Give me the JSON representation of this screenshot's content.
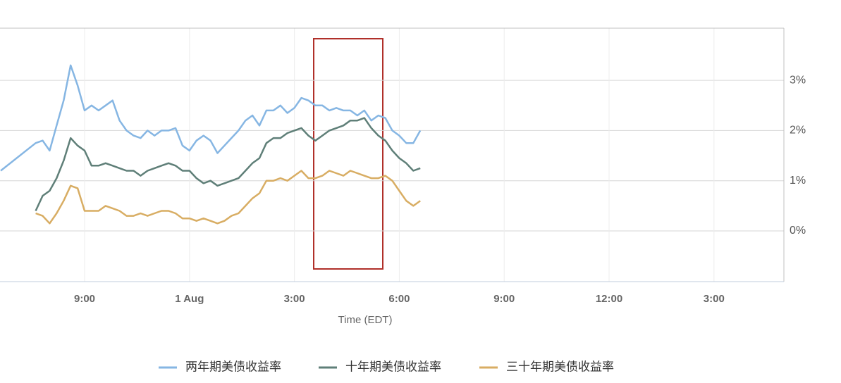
{
  "chart_data": {
    "type": "line",
    "xlabel": "Time (EDT)",
    "x": [
      -5.4,
      -4.4,
      -4.2,
      -4.0,
      -3.8,
      -3.6,
      -3.4,
      -3.2,
      -3.0,
      -2.8,
      -2.6,
      -2.4,
      -2.2,
      -2.0,
      -1.8,
      -1.6,
      -1.4,
      -1.2,
      -1.0,
      -0.8,
      -0.6,
      -0.4,
      -0.2,
      0.0,
      0.2,
      0.4,
      0.6,
      0.8,
      1.0,
      1.2,
      1.4,
      1.6,
      1.8,
      2.0,
      2.2,
      2.4,
      2.6,
      2.8,
      3.0,
      3.2,
      3.4,
      3.6,
      3.8,
      4.0,
      4.2,
      4.4,
      4.6,
      4.8,
      5.0,
      5.2,
      5.4,
      5.6,
      5.8,
      6.0,
      6.2,
      6.4,
      6.6
    ],
    "series": [
      {
        "name": "两年期美债收益率",
        "color": "#86b6e3",
        "values": [
          1.2,
          1.75,
          1.8,
          1.6,
          2.1,
          2.6,
          3.3,
          2.9,
          2.4,
          2.5,
          2.4,
          2.5,
          2.6,
          2.2,
          2.0,
          1.9,
          1.85,
          2.0,
          1.9,
          2.0,
          2.0,
          2.05,
          1.7,
          1.6,
          1.8,
          1.9,
          1.8,
          1.55,
          1.7,
          1.85,
          2.0,
          2.2,
          2.3,
          2.1,
          2.4,
          2.4,
          2.5,
          2.35,
          2.45,
          2.65,
          2.6,
          2.5,
          2.5,
          2.4,
          2.45,
          2.4,
          2.4,
          2.3,
          2.4,
          2.2,
          2.3,
          2.25,
          2.0,
          1.9,
          1.75,
          1.75,
          2.0
        ]
      },
      {
        "name": "十年期美债收益率",
        "color": "#5f7f78",
        "values": [
          null,
          0.4,
          0.7,
          0.8,
          1.05,
          1.4,
          1.85,
          1.7,
          1.6,
          1.3,
          1.3,
          1.35,
          1.3,
          1.25,
          1.2,
          1.2,
          1.1,
          1.2,
          1.25,
          1.3,
          1.35,
          1.3,
          1.2,
          1.2,
          1.05,
          0.95,
          1.0,
          0.9,
          0.95,
          1.0,
          1.05,
          1.2,
          1.35,
          1.45,
          1.75,
          1.85,
          1.85,
          1.95,
          2.0,
          2.05,
          1.9,
          1.8,
          1.9,
          2.0,
          2.05,
          2.1,
          2.2,
          2.2,
          2.25,
          2.05,
          1.9,
          1.8,
          1.6,
          1.45,
          1.35,
          1.2,
          1.25
        ]
      },
      {
        "name": "三十年期美债收益率",
        "color": "#d8ad63",
        "values": [
          null,
          0.35,
          0.3,
          0.15,
          0.35,
          0.6,
          0.9,
          0.85,
          0.4,
          0.4,
          0.4,
          0.5,
          0.45,
          0.4,
          0.3,
          0.3,
          0.35,
          0.3,
          0.35,
          0.4,
          0.4,
          0.35,
          0.25,
          0.25,
          0.2,
          0.25,
          0.2,
          0.15,
          0.2,
          0.3,
          0.35,
          0.5,
          0.65,
          0.75,
          1.0,
          1.0,
          1.05,
          1.0,
          1.1,
          1.2,
          1.05,
          1.05,
          1.1,
          1.2,
          1.15,
          1.1,
          1.2,
          1.15,
          1.1,
          1.05,
          1.05,
          1.1,
          1.0,
          0.8,
          0.6,
          0.5,
          0.6
        ]
      }
    ],
    "xlim": [
      -5.42,
      17.0
    ],
    "xticks": [
      {
        "value": -3,
        "label": "9:00"
      },
      {
        "value": 0,
        "label": "1 Aug"
      },
      {
        "value": 3,
        "label": "3:00"
      },
      {
        "value": 6,
        "label": "6:00"
      },
      {
        "value": 9,
        "label": "9:00"
      },
      {
        "value": 12,
        "label": "12:00"
      },
      {
        "value": 15,
        "label": "3:00"
      }
    ],
    "ylim": [
      -1.01,
      4.04
    ],
    "yticks": [
      {
        "value": 0,
        "label": "0%"
      },
      {
        "value": 1,
        "label": "1%"
      },
      {
        "value": 2,
        "label": "2%"
      },
      {
        "value": 3,
        "label": "3%"
      }
    ],
    "grid": true,
    "legend": "bottom"
  }
}
